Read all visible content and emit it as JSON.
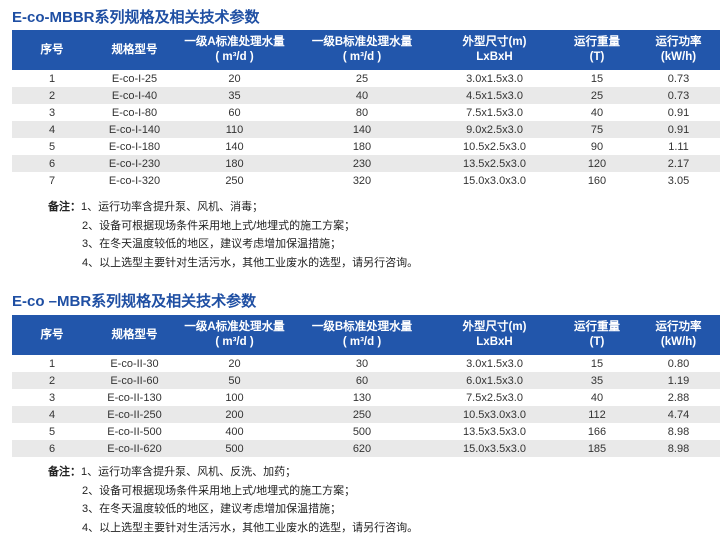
{
  "sections": [
    {
      "title": "E-co-MBBR系列规格及相关技术参数",
      "headers": [
        [
          "序号",
          ""
        ],
        [
          "规格型号",
          ""
        ],
        [
          "一级A标准处理水量",
          "( m³/d )"
        ],
        [
          "一级B标准处理水量",
          "( m³/d )"
        ],
        [
          "外型尺寸(m)",
          "LxBxH"
        ],
        [
          "运行重量",
          "(T)"
        ],
        [
          "运行功率",
          "(kW/h)"
        ]
      ],
      "rows": [
        [
          "1",
          "E-co-I-25",
          "20",
          "25",
          "3.0x1.5x3.0",
          "15",
          "0.73"
        ],
        [
          "2",
          "E-co-I-40",
          "35",
          "40",
          "4.5x1.5x3.0",
          "25",
          "0.73"
        ],
        [
          "3",
          "E-co-I-80",
          "60",
          "80",
          "7.5x1.5x3.0",
          "40",
          "0.91"
        ],
        [
          "4",
          "E-co-I-140",
          "110",
          "140",
          "9.0x2.5x3.0",
          "75",
          "0.91"
        ],
        [
          "5",
          "E-co-I-180",
          "140",
          "180",
          "10.5x2.5x3.0",
          "90",
          "1.11"
        ],
        [
          "6",
          "E-co-I-230",
          "180",
          "230",
          "13.5x2.5x3.0",
          "120",
          "2.17"
        ],
        [
          "7",
          "E-co-I-320",
          "250",
          "320",
          "15.0x3.0x3.0",
          "160",
          "3.05"
        ]
      ],
      "notes_label": "备注：",
      "notes": [
        "1、运行功率含提升泵、风机、消毒；",
        "2、设备可根据现场条件采用地上式/地埋式的施工方案；",
        "3、在冬天温度较低的地区，建议考虑增加保温措施；",
        "4、以上选型主要针对生活污水，其他工业废水的选型，请另行咨询。"
      ]
    },
    {
      "title": "E-co –MBR系列规格及相关技术参数",
      "headers": [
        [
          "序号",
          ""
        ],
        [
          "规格型号",
          ""
        ],
        [
          "一级A标准处理水量",
          "( m³/d )"
        ],
        [
          "一级B标准处理水量",
          "( m³/d )"
        ],
        [
          "外型尺寸(m)",
          "LxBxH"
        ],
        [
          "运行重量",
          "(T)"
        ],
        [
          "运行功率",
          "(kW/h)"
        ]
      ],
      "rows": [
        [
          "1",
          "E-co-II-30",
          "20",
          "30",
          "3.0x1.5x3.0",
          "15",
          "0.80"
        ],
        [
          "2",
          "E-co-II-60",
          "50",
          "60",
          "6.0x1.5x3.0",
          "35",
          "1.19"
        ],
        [
          "3",
          "E-co-II-130",
          "100",
          "130",
          "7.5x2.5x3.0",
          "40",
          "2.88"
        ],
        [
          "4",
          "E-co-II-250",
          "200",
          "250",
          "10.5x3.0x3.0",
          "112",
          "4.74"
        ],
        [
          "5",
          "E-co-II-500",
          "400",
          "500",
          "13.5x3.5x3.0",
          "166",
          "8.98"
        ],
        [
          "6",
          "E-co-II-620",
          "500",
          "620",
          "15.0x3.5x3.0",
          "185",
          "8.98"
        ]
      ],
      "notes_label": "备注：",
      "notes": [
        "1、运行功率含提升泵、风机、反洗、加药；",
        "2、设备可根据现场条件采用地上式/地埋式的施工方案；",
        "3、在冬天温度较低的地区，建议考虑增加保温措施；",
        "4、以上选型主要针对生活污水，其他工业废水的选型，请另行咨询。"
      ]
    }
  ],
  "colors": {
    "header_bg": "#2256ab",
    "title": "#1f4fa3",
    "stripe": "#e9e9e9"
  }
}
